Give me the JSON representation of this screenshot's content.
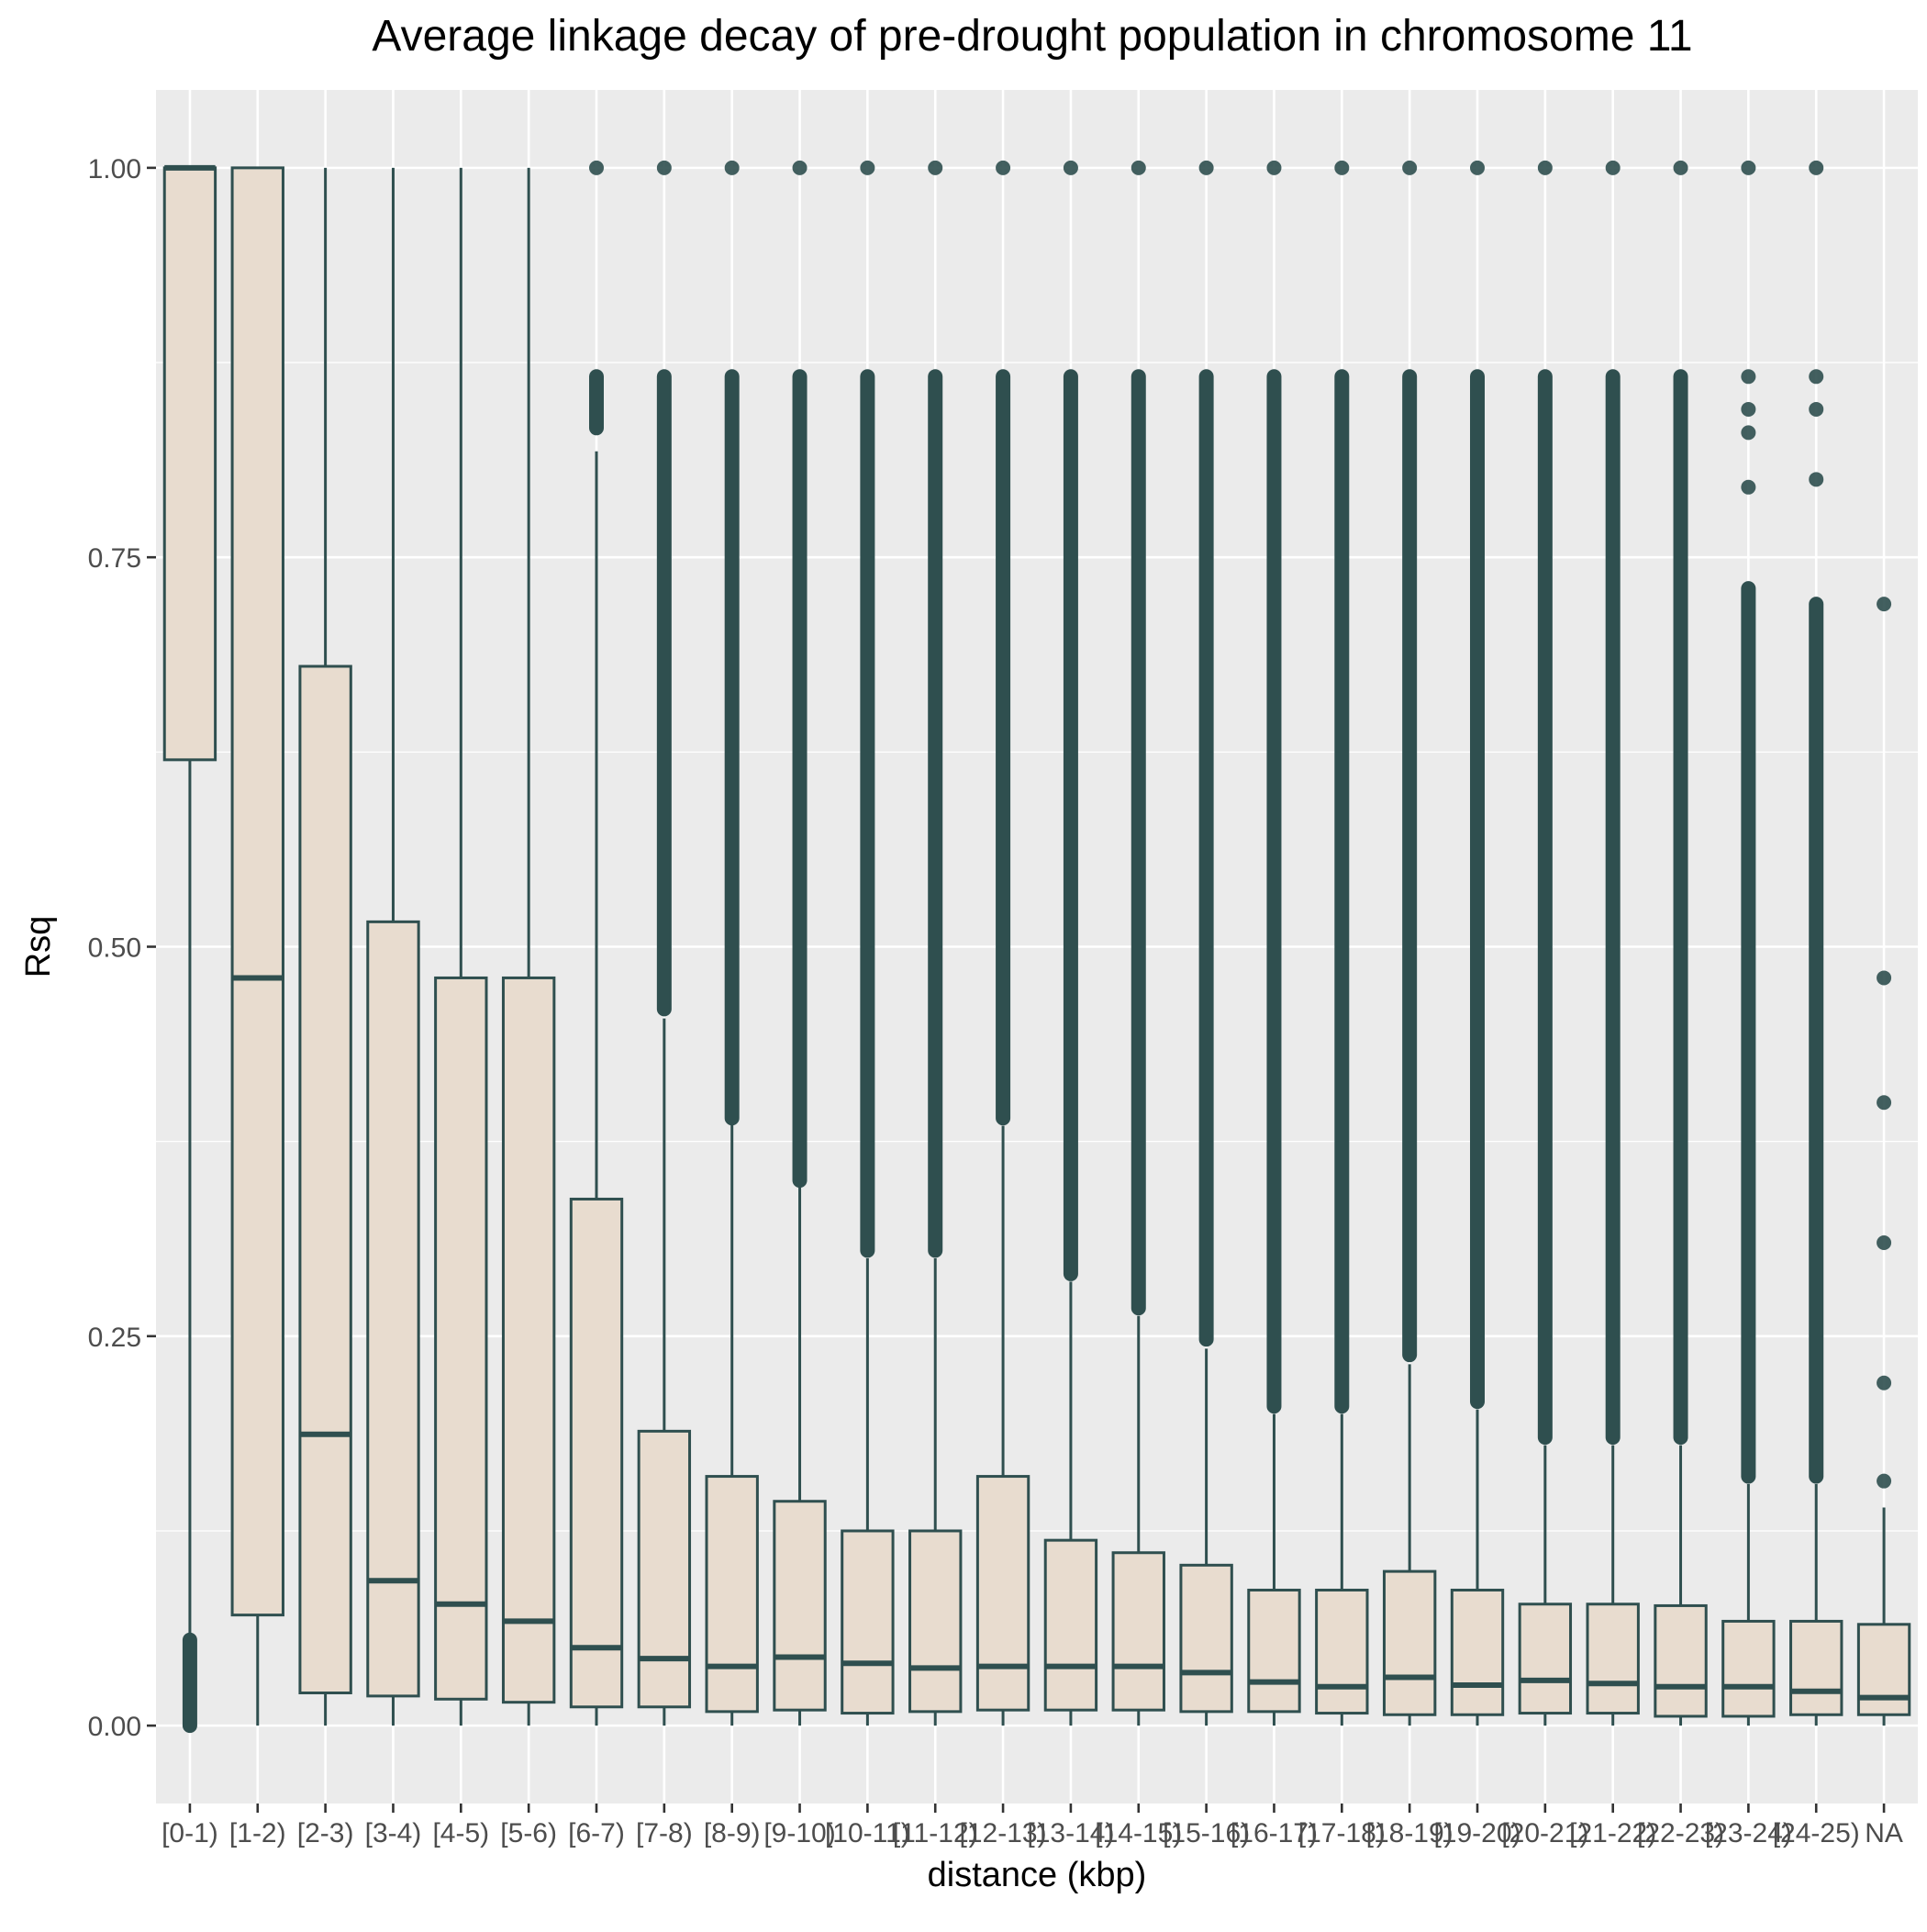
{
  "chart_data": {
    "type": "box",
    "title": "Average linkage decay of pre-drought population in chromosome  11",
    "xlabel": "distance (kbp)",
    "ylabel": "Rsq",
    "ylim": [
      -0.05,
      1.05
    ],
    "yticks": [
      "0.00",
      "0.25",
      "0.50",
      "0.75",
      "1.00"
    ],
    "ytick_values": [
      0,
      0.25,
      0.5,
      0.75,
      1.0
    ],
    "grid": true,
    "colors": {
      "panel": "#EBEBEB",
      "grid": "#FFFFFF",
      "box_fill": "#E8DCCF",
      "box_line": "#2F4F4F",
      "point": "#2F4F4F"
    },
    "categories": [
      "[0-1)",
      "[1-2)",
      "[2-3)",
      "[3-4)",
      "[4-5)",
      "[5-6)",
      "[6-7)",
      "[7-8)",
      "[8-9)",
      "[9-10)",
      "[10-11)",
      "[11-12)",
      "[12-13)",
      "[13-14)",
      "[14-15)",
      "[15-16)",
      "[16-17)",
      "[17-18)",
      "[18-19)",
      "[19-20)",
      "[20-21)",
      "[21-22)",
      "[22-23)",
      "[23-24)",
      "[24-25)",
      "NA"
    ],
    "boxes": [
      {
        "category": "[0-1)",
        "lower_whisker": 0.055,
        "q1": 0.62,
        "median": 1.0,
        "q3": 1.0,
        "upper_whisker": 1.0,
        "outlier_ranges": [
          [
            0.0,
            0.055
          ]
        ],
        "outliers": []
      },
      {
        "category": "[1-2)",
        "lower_whisker": 0.0,
        "q1": 0.071,
        "median": 0.48,
        "q3": 1.0,
        "upper_whisker": 1.0,
        "outlier_ranges": [],
        "outliers": []
      },
      {
        "category": "[2-3)",
        "lower_whisker": 0.0,
        "q1": 0.021,
        "median": 0.187,
        "q3": 0.68,
        "upper_whisker": 1.0,
        "outlier_ranges": [],
        "outliers": []
      },
      {
        "category": "[3-4)",
        "lower_whisker": 0.0,
        "q1": 0.019,
        "median": 0.093,
        "q3": 0.516,
        "upper_whisker": 1.0,
        "outlier_ranges": [],
        "outliers": []
      },
      {
        "category": "[4-5)",
        "lower_whisker": 0.0,
        "q1": 0.017,
        "median": 0.078,
        "q3": 0.48,
        "upper_whisker": 1.0,
        "outlier_ranges": [],
        "outliers": []
      },
      {
        "category": "[5-6)",
        "lower_whisker": 0.0,
        "q1": 0.015,
        "median": 0.067,
        "q3": 0.48,
        "upper_whisker": 1.0,
        "outlier_ranges": [],
        "outliers": []
      },
      {
        "category": "[6-7)",
        "lower_whisker": 0.0,
        "q1": 0.012,
        "median": 0.05,
        "q3": 0.338,
        "upper_whisker": 0.818,
        "outlier_ranges": [
          [
            0.833,
            0.866
          ]
        ],
        "outliers": [
          1.0
        ]
      },
      {
        "category": "[7-8)",
        "lower_whisker": 0.0,
        "q1": 0.012,
        "median": 0.043,
        "q3": 0.189,
        "upper_whisker": 0.454,
        "outlier_ranges": [
          [
            0.46,
            0.866
          ]
        ],
        "outliers": [
          1.0
        ]
      },
      {
        "category": "[8-9)",
        "lower_whisker": 0.0,
        "q1": 0.009,
        "median": 0.038,
        "q3": 0.16,
        "upper_whisker": 0.388,
        "outlier_ranges": [
          [
            0.39,
            0.866
          ]
        ],
        "outliers": [
          1.0
        ]
      },
      {
        "category": "[9-10)",
        "lower_whisker": 0.0,
        "q1": 0.01,
        "median": 0.044,
        "q3": 0.144,
        "upper_whisker": 0.346,
        "outlier_ranges": [
          [
            0.35,
            0.866
          ]
        ],
        "outliers": [
          1.0
        ]
      },
      {
        "category": "[10-11)",
        "lower_whisker": 0.0,
        "q1": 0.008,
        "median": 0.04,
        "q3": 0.125,
        "upper_whisker": 0.3,
        "outlier_ranges": [
          [
            0.305,
            0.866
          ]
        ],
        "outliers": [
          1.0
        ]
      },
      {
        "category": "[11-12)",
        "lower_whisker": 0.0,
        "q1": 0.009,
        "median": 0.037,
        "q3": 0.125,
        "upper_whisker": 0.3,
        "outlier_ranges": [
          [
            0.305,
            0.866
          ]
        ],
        "outliers": [
          1.0
        ]
      },
      {
        "category": "[12-13)",
        "lower_whisker": 0.0,
        "q1": 0.01,
        "median": 0.038,
        "q3": 0.16,
        "upper_whisker": 0.385,
        "outlier_ranges": [
          [
            0.39,
            0.866
          ]
        ],
        "outliers": [
          1.0
        ]
      },
      {
        "category": "[13-14)",
        "lower_whisker": 0.0,
        "q1": 0.01,
        "median": 0.038,
        "q3": 0.119,
        "upper_whisker": 0.285,
        "outlier_ranges": [
          [
            0.29,
            0.866
          ]
        ],
        "outliers": [
          1.0
        ]
      },
      {
        "category": "[14-15)",
        "lower_whisker": 0.0,
        "q1": 0.01,
        "median": 0.038,
        "q3": 0.111,
        "upper_whisker": 0.263,
        "outlier_ranges": [
          [
            0.268,
            0.866
          ]
        ],
        "outliers": [
          1.0
        ]
      },
      {
        "category": "[15-16)",
        "lower_whisker": 0.0,
        "q1": 0.009,
        "median": 0.034,
        "q3": 0.103,
        "upper_whisker": 0.242,
        "outlier_ranges": [
          [
            0.248,
            0.866
          ]
        ],
        "outliers": [
          1.0
        ]
      },
      {
        "category": "[16-17)",
        "lower_whisker": 0.0,
        "q1": 0.009,
        "median": 0.028,
        "q3": 0.087,
        "upper_whisker": 0.2,
        "outlier_ranges": [
          [
            0.205,
            0.866
          ]
        ],
        "outliers": [
          1.0
        ]
      },
      {
        "category": "[17-18)",
        "lower_whisker": 0.0,
        "q1": 0.008,
        "median": 0.025,
        "q3": 0.087,
        "upper_whisker": 0.2,
        "outlier_ranges": [
          [
            0.205,
            0.866
          ]
        ],
        "outliers": [
          1.0
        ]
      },
      {
        "category": "[18-19)",
        "lower_whisker": 0.0,
        "q1": 0.007,
        "median": 0.031,
        "q3": 0.099,
        "upper_whisker": 0.232,
        "outlier_ranges": [
          [
            0.238,
            0.866
          ]
        ],
        "outliers": [
          1.0
        ]
      },
      {
        "category": "[19-20)",
        "lower_whisker": 0.0,
        "q1": 0.007,
        "median": 0.026,
        "q3": 0.087,
        "upper_whisker": 0.203,
        "outlier_ranges": [
          [
            0.208,
            0.866
          ]
        ],
        "outliers": [
          1.0
        ]
      },
      {
        "category": "[20-21)",
        "lower_whisker": 0.0,
        "q1": 0.008,
        "median": 0.029,
        "q3": 0.078,
        "upper_whisker": 0.18,
        "outlier_ranges": [
          [
            0.185,
            0.866
          ]
        ],
        "outliers": [
          1.0
        ]
      },
      {
        "category": "[21-22)",
        "lower_whisker": 0.0,
        "q1": 0.008,
        "median": 0.027,
        "q3": 0.078,
        "upper_whisker": 0.18,
        "outlier_ranges": [
          [
            0.185,
            0.866
          ]
        ],
        "outliers": [
          1.0
        ]
      },
      {
        "category": "[22-23)",
        "lower_whisker": 0.0,
        "q1": 0.006,
        "median": 0.025,
        "q3": 0.077,
        "upper_whisker": 0.18,
        "outlier_ranges": [
          [
            0.185,
            0.866
          ]
        ],
        "outliers": [
          1.0
        ]
      },
      {
        "category": "[23-24)",
        "lower_whisker": 0.0,
        "q1": 0.006,
        "median": 0.025,
        "q3": 0.067,
        "upper_whisker": 0.155,
        "outlier_ranges": [
          [
            0.16,
            0.73
          ]
        ],
        "outliers": [
          0.795,
          0.83,
          0.845,
          0.866,
          1.0
        ]
      },
      {
        "category": "[24-25)",
        "lower_whisker": 0.0,
        "q1": 0.007,
        "median": 0.022,
        "q3": 0.067,
        "upper_whisker": 0.155,
        "outlier_ranges": [
          [
            0.16,
            0.72
          ]
        ],
        "outliers": [
          0.8,
          0.845,
          0.866,
          1.0
        ]
      },
      {
        "category": "NA",
        "lower_whisker": 0.0,
        "q1": 0.007,
        "median": 0.018,
        "q3": 0.065,
        "upper_whisker": 0.14,
        "outlier_ranges": [],
        "outliers": [
          0.157,
          0.22,
          0.31,
          0.4,
          0.48,
          0.72
        ]
      }
    ]
  }
}
